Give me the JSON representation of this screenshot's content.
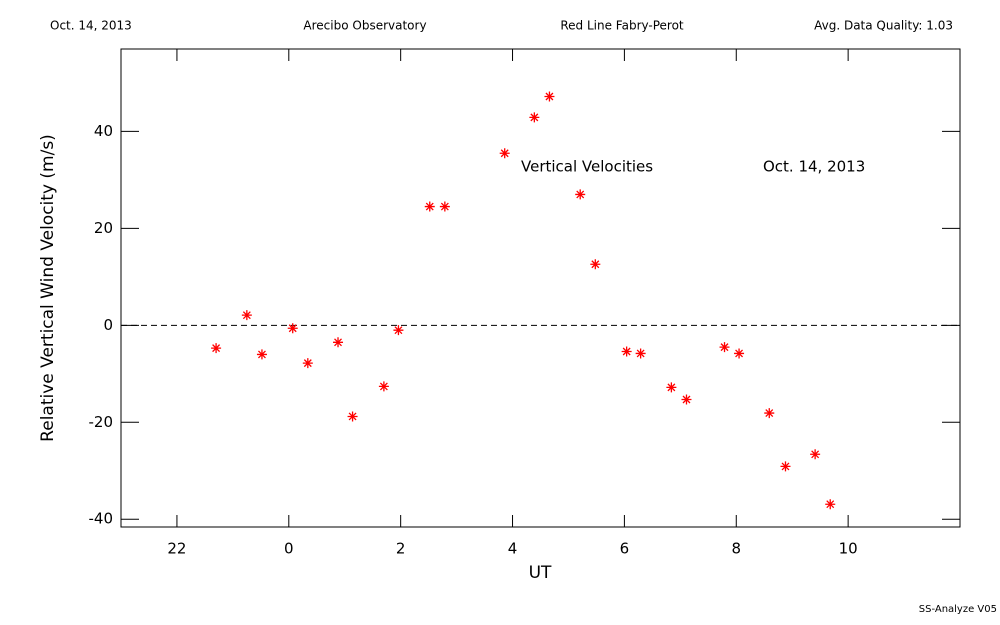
{
  "chart_data": {
    "type": "scatter",
    "header": [
      "Oct. 14, 2013",
      "Arecibo Observatory",
      "Red Line Fabry-Perot",
      "Avg. Data Quality: 1.03"
    ],
    "annotations": [
      "Vertical Velocities",
      "Oct. 14, 2013"
    ],
    "footer": "SS-Analyze V05",
    "x_label": "UT",
    "y_label": "Relative Vertical Wind Velocity (m/s)",
    "color": "#ff0000",
    "reference_line": 0,
    "x": [
      -1.3,
      -0.75,
      -0.48,
      0.07,
      0.34,
      0.88,
      1.14,
      1.7,
      1.96,
      2.52,
      2.79,
      3.86,
      4.39,
      4.66,
      5.21,
      5.48,
      6.04,
      6.29,
      6.84,
      7.11,
      7.79,
      8.05,
      8.59,
      8.88,
      9.41,
      9.68
    ],
    "values": [
      -4.7,
      2.1,
      -6.0,
      -0.6,
      -7.8,
      -3.5,
      -18.8,
      -12.6,
      -1.0,
      24.5,
      24.5,
      35.5,
      42.9,
      47.2,
      27.0,
      12.6,
      -5.4,
      -5.8,
      -12.8,
      -15.3,
      -4.5,
      -5.8,
      -18.1,
      -29.1,
      -26.6,
      -36.9
    ],
    "xlim": [
      -3,
      12
    ],
    "xticks": [
      {
        "value": -2,
        "label": "22"
      },
      0,
      2,
      4,
      6,
      8,
      10
    ],
    "ylim": [
      -41.6,
      57
    ],
    "yticks": [
      -40,
      -20,
      0,
      20,
      40
    ]
  }
}
